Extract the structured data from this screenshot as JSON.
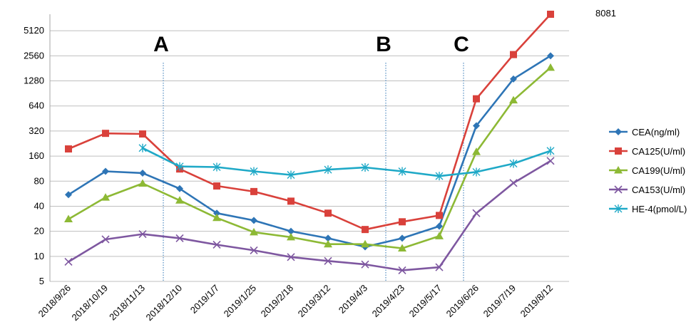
{
  "chart_data": {
    "type": "line",
    "yscale": "log2",
    "ylim": [
      5,
      8081
    ],
    "yticks": [
      5,
      10,
      20,
      40,
      80,
      160,
      320,
      640,
      1280,
      2560,
      5120
    ],
    "categories": [
      "2018/9/26",
      "2018/10/19",
      "2018/11/13",
      "2018/12/10",
      "2019/1/7",
      "2019/1/25",
      "2019/2/18",
      "2019/3/12",
      "2019/4/3",
      "2019/4/23",
      "2019/5/17",
      "2019/6/26",
      "2019/7/19",
      "2019/8/12"
    ],
    "series": [
      {
        "name": "CEA(ng/ml)",
        "color": "#2E75B6",
        "marker": "diamond",
        "values": [
          55,
          105,
          100,
          65,
          33,
          27,
          20,
          16.5,
          13,
          16.5,
          23,
          370,
          1350,
          2560
        ]
      },
      {
        "name": "CA125(U/ml)",
        "color": "#D9413B",
        "marker": "square",
        "values": [
          195,
          300,
          295,
          112,
          70,
          60,
          46,
          33,
          21,
          26,
          31,
          780,
          2650,
          8081
        ]
      },
      {
        "name": "CA199(U/ml)",
        "color": "#8DB935",
        "marker": "triangle",
        "values": [
          28,
          51,
          75,
          47,
          29,
          19.5,
          17,
          14,
          14,
          12.5,
          17.5,
          180,
          750,
          1850
        ]
      },
      {
        "name": "CA153(U/ml)",
        "color": "#7E57A0",
        "marker": "x",
        "values": [
          8.6,
          16,
          18.5,
          16.5,
          13.8,
          11.8,
          9.8,
          8.8,
          8,
          6.8,
          7.4,
          33,
          76,
          140
        ]
      },
      {
        "name": "HE-4(pmol/L)",
        "color": "#1FA9C7",
        "marker": "asterisk",
        "values": [
          null,
          null,
          200,
          120,
          118,
          105,
          95,
          110,
          117,
          105,
          92,
          103,
          130,
          185
        ]
      }
    ],
    "annotations": [
      {
        "label": "A",
        "between": [
          2,
          3
        ]
      },
      {
        "label": "B",
        "between": [
          8,
          9
        ]
      },
      {
        "label": "C",
        "between": [
          10,
          11
        ]
      }
    ],
    "top_note": "8081",
    "grid": "horizontal",
    "legend": "right",
    "title": "",
    "xlabel": "",
    "ylabel": ""
  }
}
